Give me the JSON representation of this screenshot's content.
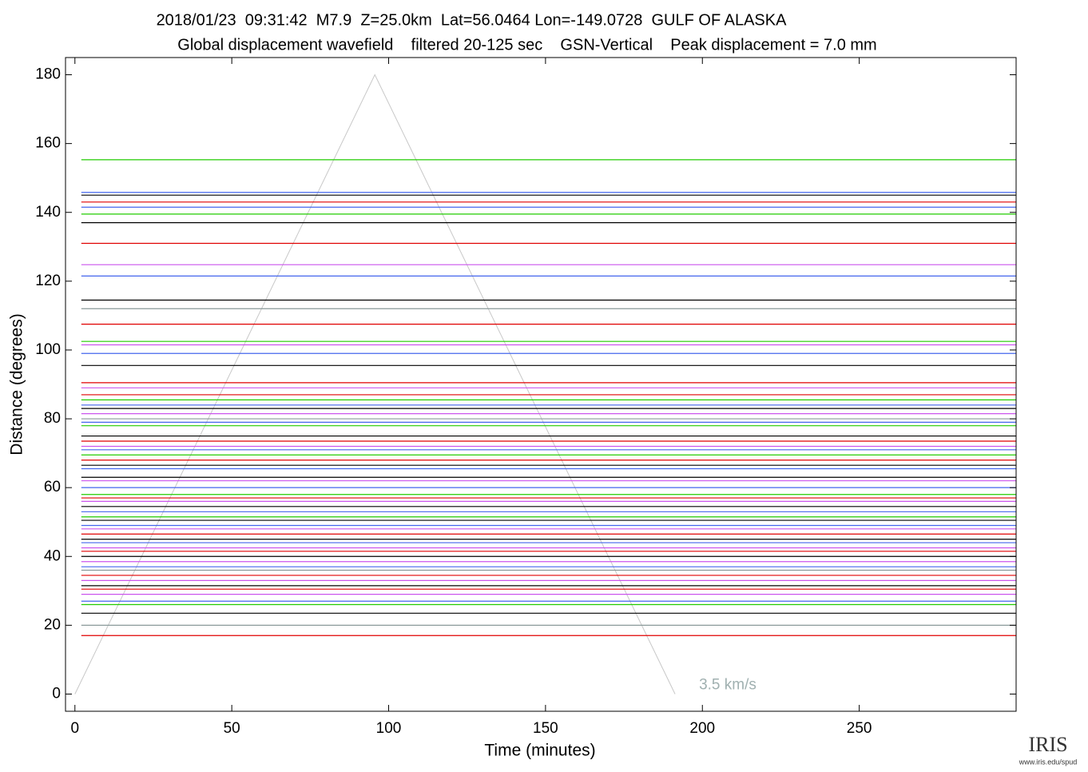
{
  "chart_data": {
    "type": "record-section",
    "title": "2018/01/23  09:31:42  M7.9  Z=25.0km  Lat=56.0464 Lon=-149.0728  GULF OF ALASKA",
    "subtitle": "Global displacement wavefield    filtered 20-125 sec    GSN-Vertical    Peak displacement = 7.0 mm",
    "xlabel": "Time (minutes)",
    "ylabel": "Distance (degrees)",
    "xlim": [
      -3,
      300
    ],
    "ylim": [
      -5,
      185
    ],
    "xticks": [
      0,
      50,
      100,
      150,
      200,
      250
    ],
    "yticks": [
      0,
      20,
      40,
      60,
      80,
      100,
      120,
      140,
      160,
      180
    ],
    "grid": false,
    "trace_distances": [
      155.3,
      145.8,
      145,
      143,
      141.5,
      139.5,
      137,
      131,
      124.8,
      121.5,
      114.5,
      112,
      107.5,
      102.5,
      101.5,
      99,
      95.5,
      90.5,
      89,
      87,
      85.5,
      84,
      83,
      81.5,
      80,
      79,
      78,
      75,
      73.5,
      72,
      71,
      69.5,
      68,
      66.5,
      65.5,
      63,
      62,
      60,
      58,
      57,
      56,
      54.5,
      53,
      51.5,
      50.5,
      49,
      48,
      46.5,
      45,
      44,
      42.5,
      41.5,
      40,
      38.5,
      37,
      36,
      34.5,
      33,
      31.5,
      30.5,
      29,
      27,
      26,
      23.5,
      20,
      17
    ],
    "trace_colors": [
      "#22cc00",
      "#4466ee",
      "#000000",
      "#e00000",
      "#4466ee",
      "#22cc00",
      "#000000",
      "#e00000",
      "#cc55ee",
      "#4466ee",
      "#000000",
      "#8a9a9a",
      "#e00000",
      "#22cc00",
      "#cc55ee",
      "#4466ee",
      "#000000",
      "#e00000",
      "#cc55ee",
      "#e00000",
      "#22cc00",
      "#4466ee",
      "#000000",
      "#cc55ee",
      "#8a9a9a",
      "#4466ee",
      "#22cc00",
      "#000000",
      "#e00000",
      "#cc55ee",
      "#4466ee",
      "#22cc00",
      "#e00000",
      "#000000",
      "#4466ee",
      "#000000",
      "#cc55ee",
      "#4466ee",
      "#22cc00",
      "#e00000",
      "#cc55ee",
      "#000000",
      "#4466ee",
      "#22cc00",
      "#000000",
      "#4466ee",
      "#cc55ee",
      "#e00000",
      "#000000",
      "#4466ee",
      "#cc55ee",
      "#e00000",
      "#000000",
      "#cc55ee",
      "#4466ee",
      "#8a9a9a",
      "#e00000",
      "#cc55ee",
      "#000000",
      "#e00000",
      "#cc55ee",
      "#4466ee",
      "#22cc00",
      "#000000",
      "#8a9a9a",
      "#e00000"
    ],
    "reference_line": {
      "label": "3.5 km/s",
      "x": [
        0,
        95.6,
        191.3
      ],
      "y": [
        0,
        180,
        0
      ],
      "color": "#c8c8c8"
    },
    "logo": "IRIS",
    "logo_url": "www.iris.edu/spud"
  }
}
